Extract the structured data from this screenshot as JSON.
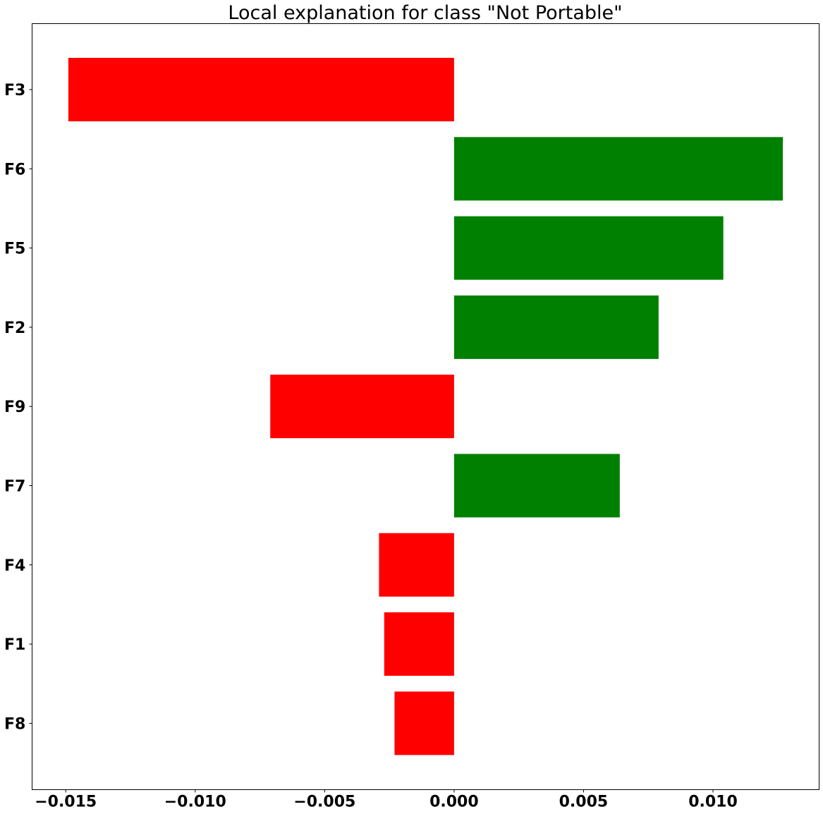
{
  "chart_data": {
    "type": "bar",
    "orientation": "horizontal",
    "title": "Local explanation for class \"Not Portable\"",
    "xlabel": "",
    "ylabel": "",
    "categories": [
      "F3",
      "F6",
      "F5",
      "F2",
      "F9",
      "F7",
      "F4",
      "F1",
      "F8"
    ],
    "values": [
      -0.0149,
      0.0127,
      0.0104,
      0.0079,
      -0.0071,
      0.0064,
      -0.0029,
      -0.0027,
      -0.0023
    ],
    "xlim": [
      -0.0163,
      0.0141
    ],
    "xticks": [
      -0.015,
      -0.01,
      -0.005,
      0.0,
      0.005,
      0.01
    ],
    "xtick_labels": [
      "−0.015",
      "−0.010",
      "−0.005",
      "0.000",
      "0.005",
      "0.010"
    ],
    "grid": false,
    "legend": "none",
    "colors": {
      "positive": "#008000",
      "negative": "#ff0000",
      "axes": "#000000",
      "background": "#ffffff"
    }
  }
}
